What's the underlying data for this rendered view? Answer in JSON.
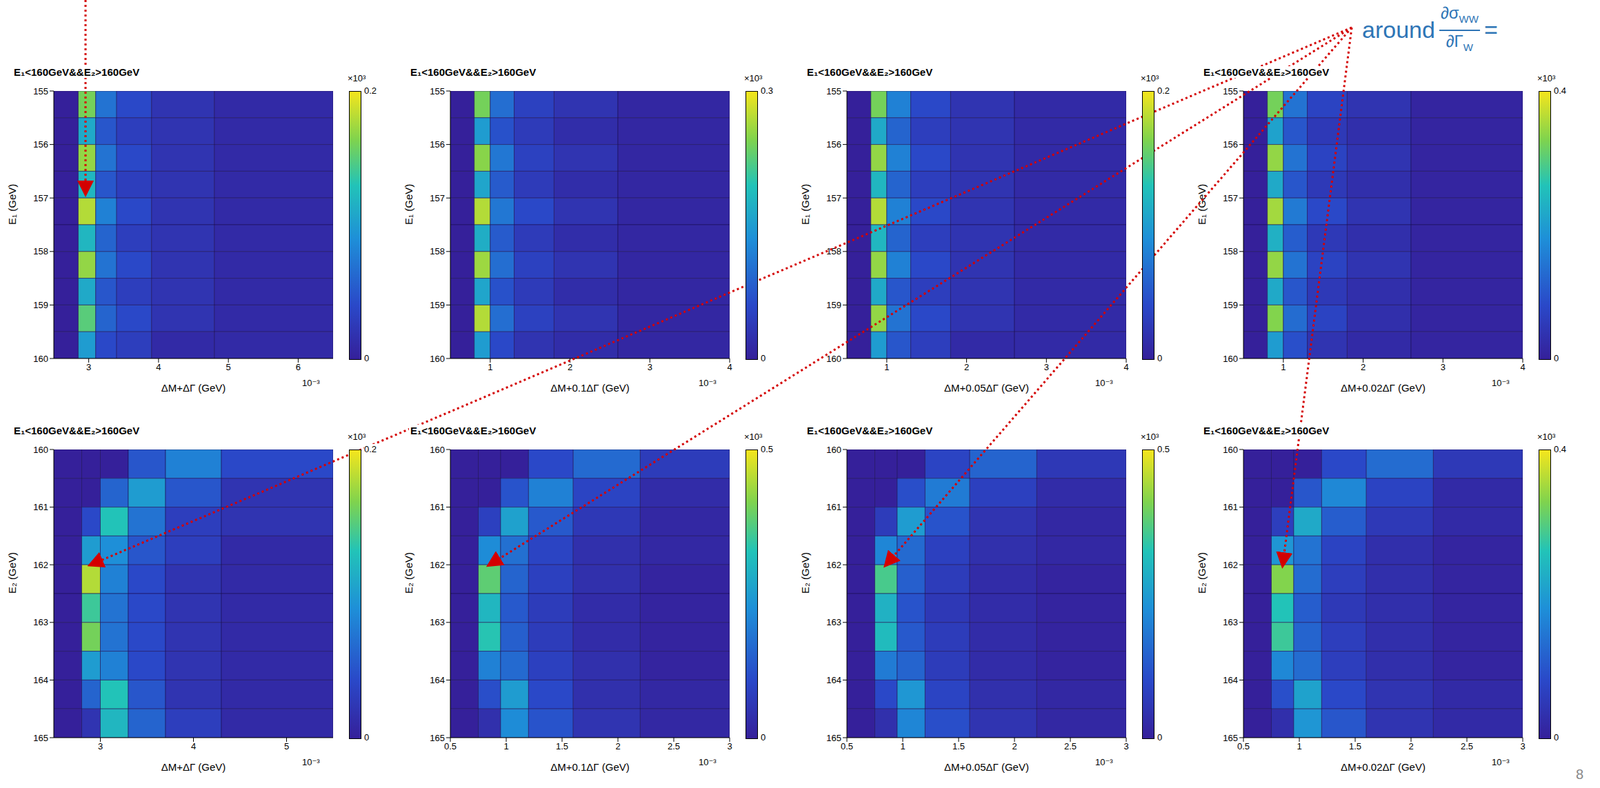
{
  "chart_data": [
    {
      "type": "heatmap",
      "title": "E₁<160GeV&&E₂>160GeV",
      "x_label": "ΔM+ΔΓ (GeV)",
      "y_label": "E₁ (GeV)",
      "xlim": [
        2.5,
        6.5
      ],
      "xticks": [
        3,
        4,
        5,
        6
      ],
      "x_multiplier": "10⁻³",
      "ylim": [
        155,
        160
      ],
      "yticks": [
        155,
        156,
        157,
        158,
        159,
        160
      ],
      "x_bins": [
        2.5,
        2.85,
        3.1,
        3.4,
        3.9,
        4.8,
        6.5
      ],
      "y_bins": [
        155,
        155.5,
        156,
        156.5,
        157,
        157.5,
        158,
        158.5,
        159,
        159.5,
        160
      ],
      "cells": [
        [
          0,
          0.16,
          0.07,
          0.04,
          0.02,
          0.01
        ],
        [
          0,
          0.11,
          0.05,
          0.03,
          0.02,
          0.01
        ],
        [
          0,
          0.17,
          0.07,
          0.04,
          0.02,
          0.01
        ],
        [
          0,
          0.12,
          0.05,
          0.03,
          0.02,
          0.01
        ],
        [
          0,
          0.18,
          0.08,
          0.04,
          0.02,
          0.01
        ],
        [
          0,
          0.12,
          0.06,
          0.03,
          0.02,
          0.01
        ],
        [
          0,
          0.17,
          0.07,
          0.04,
          0.02,
          0.01
        ],
        [
          0,
          0.11,
          0.05,
          0.03,
          0.02,
          0.01
        ],
        [
          0,
          0.15,
          0.06,
          0.04,
          0.02,
          0.01
        ],
        [
          0,
          0.1,
          0.04,
          0.03,
          0.01,
          0.01
        ]
      ],
      "zlim": [
        0,
        0.2
      ],
      "zticks": [
        0,
        0.2
      ],
      "z_multiplier": "×10³"
    },
    {
      "type": "heatmap",
      "title": "E₁<160GeV&&E₂>160GeV",
      "x_label": "ΔM+0.1ΔΓ (GeV)",
      "y_label": "E₁ (GeV)",
      "xlim": [
        0.5,
        4
      ],
      "xticks": [
        1,
        2,
        3,
        4
      ],
      "x_multiplier": "10⁻³",
      "ylim": [
        155,
        160
      ],
      "yticks": [
        155,
        156,
        157,
        158,
        159,
        160
      ],
      "x_bins": [
        0.5,
        0.8,
        1.0,
        1.3,
        1.8,
        2.6,
        4
      ],
      "y_bins": [
        155,
        155.5,
        156,
        156.5,
        157,
        157.5,
        158,
        158.5,
        159,
        159.5,
        160
      ],
      "cells": [
        [
          0,
          0.24,
          0.1,
          0.05,
          0.03,
          0.01
        ],
        [
          0,
          0.15,
          0.07,
          0.04,
          0.02,
          0.01
        ],
        [
          0,
          0.25,
          0.11,
          0.05,
          0.03,
          0.01
        ],
        [
          0,
          0.16,
          0.08,
          0.04,
          0.02,
          0.01
        ],
        [
          0,
          0.27,
          0.11,
          0.06,
          0.03,
          0.01
        ],
        [
          0,
          0.17,
          0.08,
          0.04,
          0.02,
          0.01
        ],
        [
          0,
          0.26,
          0.1,
          0.05,
          0.03,
          0.01
        ],
        [
          0,
          0.16,
          0.07,
          0.04,
          0.02,
          0.01
        ],
        [
          0,
          0.27,
          0.1,
          0.05,
          0.03,
          0.01
        ],
        [
          0,
          0.15,
          0.06,
          0.03,
          0.02,
          0.01
        ]
      ],
      "zlim": [
        0,
        0.3
      ],
      "zticks": [
        0,
        0.3
      ],
      "z_multiplier": "×10³"
    },
    {
      "type": "heatmap",
      "title": "E₁<160GeV&&E₂>160GeV",
      "x_label": "ΔM+0.05ΔΓ (GeV)",
      "y_label": "E₁ (GeV)",
      "xlim": [
        0.5,
        4
      ],
      "xticks": [
        1,
        2,
        3,
        4
      ],
      "x_multiplier": "10⁻³",
      "ylim": [
        155,
        160
      ],
      "yticks": [
        155,
        156,
        157,
        158,
        159,
        160
      ],
      "x_bins": [
        0.5,
        0.8,
        1.0,
        1.3,
        1.8,
        2.6,
        4
      ],
      "y_bins": [
        155,
        155.5,
        156,
        156.5,
        157,
        157.5,
        158,
        158.5,
        159,
        159.5,
        160
      ],
      "cells": [
        [
          0,
          0.16,
          0.08,
          0.04,
          0.02,
          0.01
        ],
        [
          0,
          0.11,
          0.06,
          0.03,
          0.02,
          0.01
        ],
        [
          0,
          0.17,
          0.08,
          0.04,
          0.02,
          0.01
        ],
        [
          0,
          0.12,
          0.06,
          0.03,
          0.02,
          0.01
        ],
        [
          0,
          0.18,
          0.08,
          0.04,
          0.02,
          0.01
        ],
        [
          0,
          0.12,
          0.06,
          0.03,
          0.02,
          0.01
        ],
        [
          0,
          0.17,
          0.08,
          0.04,
          0.02,
          0.01
        ],
        [
          0,
          0.11,
          0.05,
          0.03,
          0.02,
          0.01
        ],
        [
          0,
          0.17,
          0.07,
          0.04,
          0.02,
          0.01
        ],
        [
          0,
          0.1,
          0.05,
          0.03,
          0.01,
          0.01
        ]
      ],
      "zlim": [
        0,
        0.2
      ],
      "zticks": [
        0,
        0.2
      ],
      "z_multiplier": "×10³"
    },
    {
      "type": "heatmap",
      "title": "E₁<160GeV&&E₂>160GeV",
      "x_label": "ΔM+0.02ΔΓ (GeV)",
      "y_label": "E₁ (GeV)",
      "xlim": [
        0.5,
        4
      ],
      "xticks": [
        1,
        2,
        3,
        4
      ],
      "x_multiplier": "10⁻³",
      "ylim": [
        155,
        160
      ],
      "yticks": [
        155,
        156,
        157,
        158,
        159,
        160
      ],
      "x_bins": [
        0.5,
        0.8,
        1.0,
        1.3,
        1.8,
        2.6,
        4
      ],
      "y_bins": [
        155,
        155.5,
        156,
        156.5,
        157,
        157.5,
        158,
        158.5,
        159,
        159.5,
        160
      ],
      "cells": [
        [
          0,
          0.32,
          0.14,
          0.07,
          0.04,
          0.01
        ],
        [
          0,
          0.21,
          0.1,
          0.05,
          0.03,
          0.01
        ],
        [
          0,
          0.34,
          0.14,
          0.07,
          0.04,
          0.01
        ],
        [
          0,
          0.22,
          0.1,
          0.05,
          0.03,
          0.01
        ],
        [
          0,
          0.35,
          0.15,
          0.08,
          0.04,
          0.01
        ],
        [
          0,
          0.23,
          0.11,
          0.05,
          0.03,
          0.01
        ],
        [
          0,
          0.34,
          0.14,
          0.07,
          0.04,
          0.01
        ],
        [
          0,
          0.22,
          0.1,
          0.05,
          0.03,
          0.01
        ],
        [
          0,
          0.33,
          0.13,
          0.07,
          0.03,
          0.01
        ],
        [
          0,
          0.2,
          0.09,
          0.04,
          0.02,
          0.01
        ]
      ],
      "zlim": [
        0,
        0.4
      ],
      "zticks": [
        0,
        0.4
      ],
      "z_multiplier": "×10³"
    },
    {
      "type": "heatmap",
      "title": "E₁<160GeV&&E₂>160GeV",
      "x_label": "ΔM+ΔΓ (GeV)",
      "y_label": "E₂ (GeV)",
      "xlim": [
        2.5,
        5.5
      ],
      "xticks": [
        3,
        4,
        5
      ],
      "x_multiplier": "10⁻³",
      "ylim": [
        160,
        165
      ],
      "yticks": [
        160,
        161,
        162,
        163,
        164,
        165
      ],
      "x_bins": [
        2.5,
        2.8,
        3.0,
        3.3,
        3.7,
        4.3,
        5.5
      ],
      "y_bins": [
        160,
        160.5,
        161,
        161.5,
        162,
        162.5,
        163,
        163.5,
        164,
        164.5,
        165
      ],
      "cells": [
        [
          0,
          0,
          0,
          0.05,
          0.08,
          0.04
        ],
        [
          0,
          0,
          0.06,
          0.1,
          0.05,
          0.02
        ],
        [
          0,
          0.04,
          0.13,
          0.07,
          0.03,
          0.02
        ],
        [
          0,
          0.1,
          0.09,
          0.05,
          0.03,
          0.01
        ],
        [
          0,
          0.18,
          0.08,
          0.04,
          0.02,
          0.01
        ],
        [
          0,
          0.14,
          0.07,
          0.04,
          0.02,
          0.01
        ],
        [
          0,
          0.16,
          0.07,
          0.04,
          0.02,
          0.01
        ],
        [
          0,
          0.1,
          0.08,
          0.04,
          0.02,
          0.01
        ],
        [
          0,
          0.06,
          0.13,
          0.05,
          0.02,
          0.01
        ],
        [
          0,
          0.02,
          0.12,
          0.06,
          0.03,
          0.01
        ]
      ],
      "zlim": [
        0,
        0.2
      ],
      "zticks": [
        0,
        0.2
      ],
      "z_multiplier": "×10³"
    },
    {
      "type": "heatmap",
      "title": "E₁<160GeV&&E₂>160GeV",
      "x_label": "ΔM+0.1ΔΓ (GeV)",
      "y_label": "E₂ (GeV)",
      "xlim": [
        0.5,
        3
      ],
      "xticks": [
        0.5,
        1,
        1.5,
        2,
        2.5,
        3
      ],
      "x_multiplier": "10⁻³",
      "ylim": [
        160,
        165
      ],
      "yticks": [
        160,
        161,
        162,
        163,
        164,
        165
      ],
      "x_bins": [
        0.5,
        0.75,
        0.95,
        1.2,
        1.6,
        2.2,
        3
      ],
      "y_bins": [
        160,
        160.5,
        161,
        161.5,
        162,
        162.5,
        163,
        163.5,
        164,
        164.5,
        165
      ],
      "cells": [
        [
          0,
          0,
          0,
          0.1,
          0.16,
          0.07
        ],
        [
          0,
          0,
          0.12,
          0.2,
          0.09,
          0.03
        ],
        [
          0,
          0.08,
          0.26,
          0.13,
          0.06,
          0.02
        ],
        [
          0,
          0.22,
          0.17,
          0.09,
          0.04,
          0.02
        ],
        [
          0,
          0.38,
          0.15,
          0.08,
          0.04,
          0.01
        ],
        [
          0,
          0.3,
          0.13,
          0.07,
          0.03,
          0.01
        ],
        [
          0,
          0.33,
          0.14,
          0.07,
          0.03,
          0.01
        ],
        [
          0,
          0.2,
          0.16,
          0.08,
          0.04,
          0.01
        ],
        [
          0,
          0.11,
          0.25,
          0.1,
          0.04,
          0.02
        ],
        [
          0,
          0.04,
          0.22,
          0.12,
          0.05,
          0.02
        ]
      ],
      "zlim": [
        0,
        0.5
      ],
      "zticks": [
        0,
        0.5
      ],
      "z_multiplier": "×10³"
    },
    {
      "type": "heatmap",
      "title": "E₁<160GeV&&E₂>160GeV",
      "x_label": "ΔM+0.05ΔΓ (GeV)",
      "y_label": "E₂ (GeV)",
      "xlim": [
        0.5,
        3
      ],
      "xticks": [
        0.5,
        1,
        1.5,
        2,
        2.5,
        3
      ],
      "x_multiplier": "10⁻³",
      "ylim": [
        160,
        165
      ],
      "yticks": [
        160,
        161,
        162,
        163,
        164,
        165
      ],
      "x_bins": [
        0.5,
        0.75,
        0.95,
        1.2,
        1.6,
        2.2,
        3
      ],
      "y_bins": [
        160,
        160.5,
        161,
        161.5,
        162,
        162.5,
        163,
        163.5,
        164,
        164.5,
        165
      ],
      "cells": [
        [
          0,
          0,
          0,
          0.09,
          0.15,
          0.06
        ],
        [
          0,
          0,
          0.11,
          0.19,
          0.08,
          0.03
        ],
        [
          0,
          0.07,
          0.25,
          0.12,
          0.05,
          0.02
        ],
        [
          0,
          0.21,
          0.16,
          0.08,
          0.04,
          0.02
        ],
        [
          0,
          0.36,
          0.14,
          0.07,
          0.03,
          0.01
        ],
        [
          0,
          0.29,
          0.12,
          0.06,
          0.03,
          0.01
        ],
        [
          0,
          0.31,
          0.13,
          0.07,
          0.03,
          0.01
        ],
        [
          0,
          0.19,
          0.15,
          0.07,
          0.03,
          0.01
        ],
        [
          0,
          0.1,
          0.24,
          0.09,
          0.04,
          0.02
        ],
        [
          0,
          0.04,
          0.21,
          0.11,
          0.05,
          0.02
        ]
      ],
      "zlim": [
        0,
        0.5
      ],
      "zticks": [
        0,
        0.5
      ],
      "z_multiplier": "×10³"
    },
    {
      "type": "heatmap",
      "title": "E₁<160GeV&&E₂>160GeV",
      "x_label": "ΔM+0.02ΔΓ (GeV)",
      "y_label": "E₂ (GeV)",
      "xlim": [
        0.5,
        3
      ],
      "xticks": [
        0.5,
        1,
        1.5,
        2,
        2.5,
        3
      ],
      "x_multiplier": "10⁻³",
      "ylim": [
        160,
        165
      ],
      "yticks": [
        160,
        161,
        162,
        163,
        164,
        165
      ],
      "x_bins": [
        0.5,
        0.75,
        0.95,
        1.2,
        1.6,
        2.2,
        3
      ],
      "y_bins": [
        160,
        160.5,
        161,
        161.5,
        162,
        162.5,
        163,
        163.5,
        164,
        164.5,
        165
      ],
      "cells": [
        [
          0,
          0,
          0,
          0.08,
          0.13,
          0.05
        ],
        [
          0,
          0,
          0.1,
          0.17,
          0.07,
          0.02
        ],
        [
          0,
          0.06,
          0.22,
          0.11,
          0.05,
          0.02
        ],
        [
          0,
          0.19,
          0.14,
          0.07,
          0.03,
          0.01
        ],
        [
          0,
          0.33,
          0.13,
          0.06,
          0.03,
          0.01
        ],
        [
          0,
          0.26,
          0.11,
          0.05,
          0.03,
          0.01
        ],
        [
          0,
          0.28,
          0.12,
          0.06,
          0.03,
          0.01
        ],
        [
          0,
          0.17,
          0.13,
          0.06,
          0.03,
          0.01
        ],
        [
          0,
          0.09,
          0.21,
          0.08,
          0.04,
          0.02
        ],
        [
          0,
          0.03,
          0.19,
          0.1,
          0.04,
          0.02
        ]
      ],
      "zlim": [
        0,
        0.4
      ],
      "zticks": [
        0,
        0.4
      ],
      "z_multiplier": "×10³"
    }
  ],
  "annotation": {
    "prefix": "around",
    "numerator": "∂σ",
    "numerator_sub": "WW",
    "denominator": "∂Γ",
    "denominator_sub": "W",
    "suffix": "="
  },
  "page_number": "8"
}
